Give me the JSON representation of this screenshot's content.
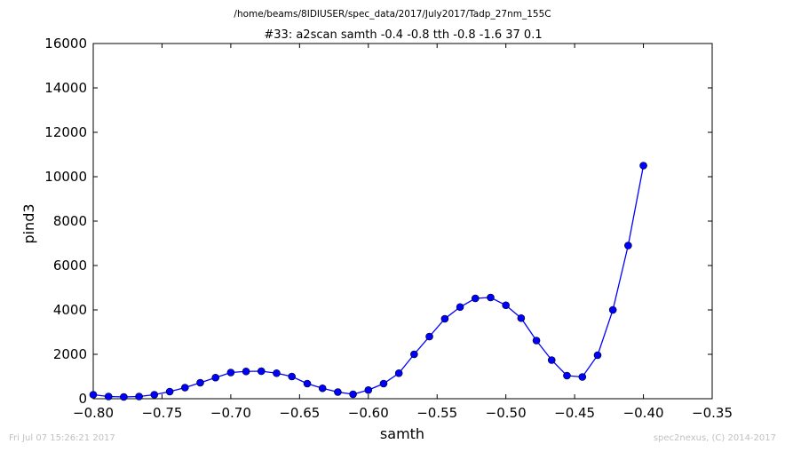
{
  "footer": {
    "timestamp": "Fri Jul 07 15:26:21 2017",
    "credit": "spec2nexus, (C) 2014-2017"
  },
  "chart_data": {
    "type": "line",
    "subtitle": "/home/beams/8IDIUSER/spec_data/2017/July2017/Tadp_27nm_155C",
    "title": "#33: a2scan  samth -0.4 -0.8  tth -0.8 -1.6  37 0.1",
    "xlabel": "samth",
    "ylabel": "pind3",
    "xlim": [
      -0.8,
      -0.35
    ],
    "ylim": [
      0,
      16000
    ],
    "xticks": [
      -0.8,
      -0.75,
      -0.7,
      -0.65,
      -0.6,
      -0.55,
      -0.5,
      -0.45,
      -0.4,
      -0.35
    ],
    "xtick_labels": [
      "−0.80",
      "−0.75",
      "−0.70",
      "−0.65",
      "−0.60",
      "−0.55",
      "−0.50",
      "−0.45",
      "−0.40",
      "−0.35"
    ],
    "yticks": [
      0,
      2000,
      4000,
      6000,
      8000,
      10000,
      12000,
      14000,
      16000
    ],
    "ytick_labels": [
      "0",
      "2000",
      "4000",
      "6000",
      "8000",
      "10000",
      "12000",
      "14000",
      "16000"
    ],
    "grid": false,
    "line_color": "#0000ff",
    "marker": "circle",
    "x": [
      -0.8,
      -0.7889,
      -0.7778,
      -0.7667,
      -0.7556,
      -0.7444,
      -0.7333,
      -0.7222,
      -0.7111,
      -0.7,
      -0.6889,
      -0.6778,
      -0.6667,
      -0.6556,
      -0.6444,
      -0.6333,
      -0.6222,
      -0.6111,
      -0.6,
      -0.5889,
      -0.5778,
      -0.5667,
      -0.5556,
      -0.5444,
      -0.5333,
      -0.5222,
      -0.5111,
      -0.5,
      -0.4889,
      -0.4778,
      -0.4667,
      -0.4556,
      -0.4444,
      -0.4333,
      -0.4222,
      -0.4111,
      -0.4
    ],
    "y": [
      180,
      100,
      80,
      100,
      180,
      320,
      500,
      720,
      950,
      1180,
      1230,
      1240,
      1150,
      1000,
      680,
      470,
      300,
      200,
      390,
      680,
      1150,
      2000,
      2800,
      3600,
      4130,
      4520,
      4560,
      4210,
      3630,
      2620,
      1740,
      1040,
      980,
      1960,
      4000,
      6900,
      10500
    ]
  }
}
